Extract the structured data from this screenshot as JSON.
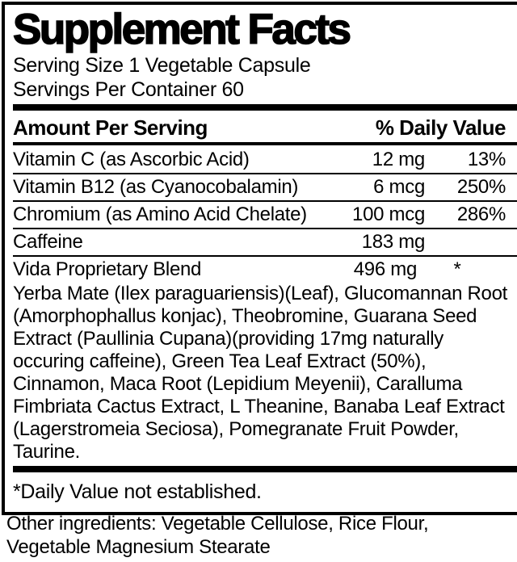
{
  "label": {
    "title": "Supplement Facts",
    "serving_size": "Serving Size 1 Vegetable Capsule",
    "servings_per_container": "Servings Per Container 60",
    "header": {
      "amount_per_serving": "Amount Per Serving",
      "daily_value": "% Daily Value"
    },
    "rows": [
      {
        "name": "Vitamin C (as Ascorbic Acid)",
        "amount": "12 mg",
        "dv": "13%"
      },
      {
        "name": "Vitamin B12 (as Cyanocobalamin)",
        "amount": "6 mcg",
        "dv": "250%"
      },
      {
        "name": "Chromium (as Amino Acid Chelate)",
        "amount": "100 mcg",
        "dv": "286%"
      },
      {
        "name": "Caffeine",
        "amount": "183 mg",
        "dv": ""
      },
      {
        "name": "Vida Proprietary Blend",
        "amount": "496 mg",
        "dv": "*"
      }
    ],
    "blend_description": "Yerba Mate (Ilex paraguariensis)(Leaf), Glucomannan Root (Amorphophallus konjac), Theobromine, Guarana Seed Extract (Paullinia Cupana)(providing 17mg naturally occuring caffeine), Green Tea Leaf Extract (50%), Cinnamon, Maca Root (Lepidium Meyenii), Caralluma Fimbriata Cactus Extract, L Theanine, Banaba Leaf Extract (Lagerstromeia Seciosa), Pomegranate Fruit Powder, Taurine.",
    "footnote": "*Daily Value not established.",
    "other_ingredients": "Other ingredients: Vegetable Cellulose, Rice Flour, Vegetable Magnesium Stearate",
    "colors": {
      "ink": "#000000",
      "background": "#ffffff"
    }
  }
}
